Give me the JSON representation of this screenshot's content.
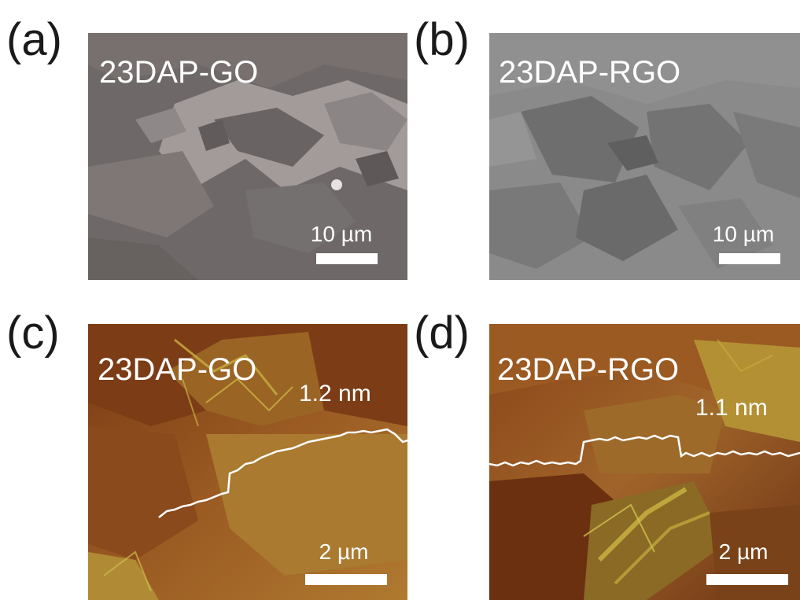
{
  "panels": [
    {
      "letter": "(a)",
      "sample": "23DAP-GO",
      "scale": "10 µm"
    },
    {
      "letter": "(b)",
      "sample": "23DAP-RGO",
      "scale": "10 µm"
    },
    {
      "letter": "(c)",
      "sample": "23DAP-GO",
      "scale": "2 µm",
      "step_height": "1.2 nm"
    },
    {
      "letter": "(d)",
      "sample": "23DAP-RGO",
      "scale": "2 µm",
      "step_height": "1.1 nm"
    }
  ],
  "colors": {
    "sem_go": "#7a7272",
    "sem_rgo": "#858585",
    "afm_base": "#8a4a1c",
    "afm_highlight": "#c8b040",
    "overlay_text": "#ffffff"
  }
}
